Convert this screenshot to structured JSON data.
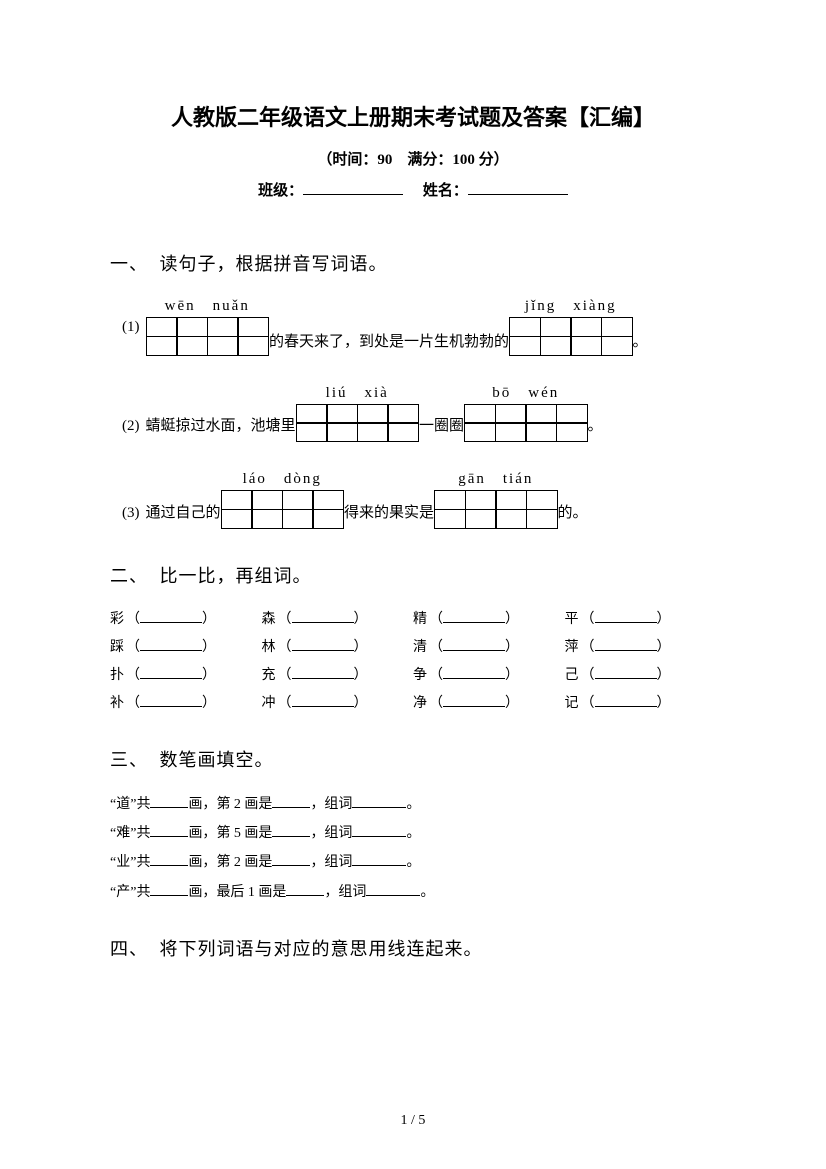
{
  "title": "人教版二年级语文上册期末考试题及答案【汇编】",
  "subtitle": "（时间：90　满分：100 分）",
  "info": {
    "class_label": "班级：",
    "name_label": "姓名："
  },
  "sections": {
    "s1": {
      "num": "一、",
      "title": "读句子，根据拼音写词语。"
    },
    "s2": {
      "num": "二、",
      "title": "比一比，再组词。"
    },
    "s3": {
      "num": "三、",
      "title": "数笔画填空。"
    },
    "s4": {
      "num": "四、",
      "title": "将下列词语与对应的意思用线连起来。"
    }
  },
  "q1": {
    "items": [
      {
        "num": "(1)",
        "blocks": [
          {
            "pinyin": "wēn　nuǎn",
            "cells": 4
          }
        ],
        "mid_text": "的春天来了，到处是一片生机勃勃的",
        "blocks2": [
          {
            "pinyin": "jǐng　xiàng",
            "cells": 4
          }
        ],
        "end_text": "。"
      },
      {
        "num": "(2)",
        "pre_text": "蜻蜓掠过水面，池塘里",
        "blocks": [
          {
            "pinyin": "liú　xià",
            "cells": 4
          }
        ],
        "mid_text": "一圈圈",
        "blocks2": [
          {
            "pinyin": "bō　wén",
            "cells": 4
          }
        ],
        "end_text": "。"
      },
      {
        "num": "(3)",
        "pre_text": "通过自己的",
        "blocks": [
          {
            "pinyin": "láo　dòng",
            "cells": 4
          }
        ],
        "mid_text": "得来的果实是",
        "blocks2": [
          {
            "pinyin": "gān　tián",
            "cells": 4
          }
        ],
        "end_text": "的。"
      }
    ]
  },
  "q2": {
    "rows": [
      [
        "彩",
        "森",
        "精",
        "平"
      ],
      [
        "踩",
        "林",
        "清",
        "萍"
      ],
      [
        "扑",
        "充",
        "争",
        "己"
      ],
      [
        "补",
        "冲",
        "净",
        "记"
      ]
    ]
  },
  "q3": {
    "lines": [
      {
        "char": "道",
        "stroke_ref": "第 2 画是"
      },
      {
        "char": "难",
        "stroke_ref": "第 5 画是"
      },
      {
        "char": "业",
        "stroke_ref": "第 2 画是"
      },
      {
        "char": "产",
        "stroke_ref": "最后 1 画是"
      }
    ],
    "template": {
      "quote_open": "“",
      "quote_close": "”",
      "gong": "共",
      "hua": "画，",
      "zuci": "，组词",
      "period": "。"
    }
  },
  "footer": "1 / 5"
}
